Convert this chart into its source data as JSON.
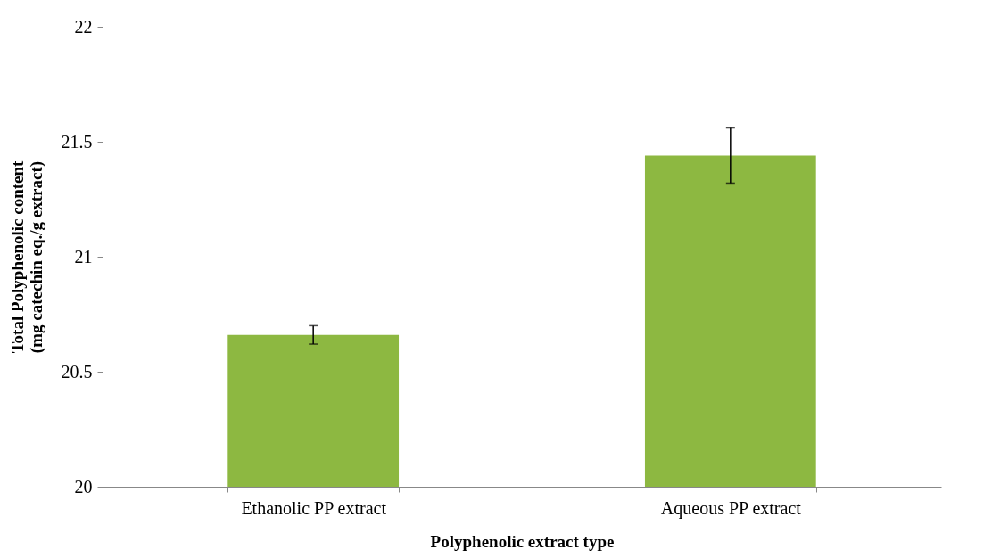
{
  "chart_data": {
    "type": "bar",
    "xlabel": "Polyphenolic extract type",
    "ylabel": "Total Polyphenolic content\n(mg catechin eq./g extract)",
    "categories": [
      "Ethanolic PP extract",
      "Aqueous PP extract"
    ],
    "values": [
      20.66,
      21.44
    ],
    "errors": [
      0.04,
      0.12
    ],
    "color": "#8db841",
    "ylim": [
      20,
      22
    ],
    "yticks": [
      20,
      20.5,
      21,
      21.5,
      22
    ],
    "grid": false
  }
}
